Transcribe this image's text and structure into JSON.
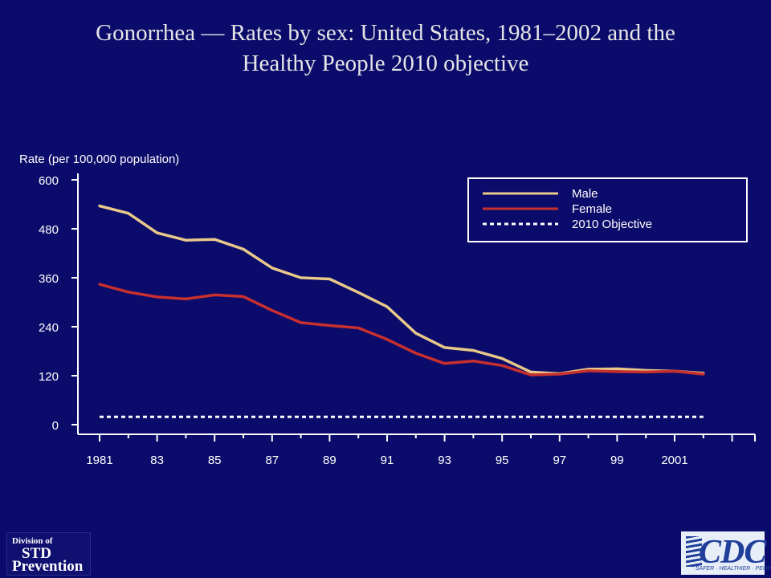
{
  "title": {
    "line1": "Gonorrhea — Rates by sex: United States, 1981–2002 and the",
    "line2": "Healthy People 2010 objective"
  },
  "colors": {
    "background": "#0b0b6b",
    "male": "#e8c98a",
    "female": "#c8302e",
    "objective": "#ffffff",
    "axis": "#ffffff"
  },
  "logos": {
    "std": {
      "line1": "Division of",
      "line2": "STD",
      "line3": "Prevention"
    },
    "cdc": {
      "mark": "CDC",
      "tagline": "SAFER · HEALTHIER · PEOPLE™"
    }
  },
  "chart_data": {
    "type": "line",
    "ylabel": "Rate (per 100,000 population)",
    "xlabel": "",
    "ylim": [
      0,
      600
    ],
    "yticks": [
      0,
      120,
      240,
      360,
      480,
      600
    ],
    "xlim": [
      1981,
      2003
    ],
    "xtick_labels": [
      {
        "year": 1981,
        "label": "1981"
      },
      {
        "year": 1983,
        "label": "83"
      },
      {
        "year": 1985,
        "label": "85"
      },
      {
        "year": 1987,
        "label": "87"
      },
      {
        "year": 1989,
        "label": "89"
      },
      {
        "year": 1991,
        "label": "91"
      },
      {
        "year": 1993,
        "label": "93"
      },
      {
        "year": 1995,
        "label": "95"
      },
      {
        "year": 1997,
        "label": "97"
      },
      {
        "year": 1999,
        "label": "99"
      },
      {
        "year": 2001,
        "label": "2001"
      }
    ],
    "legend_position": "top-right",
    "x": [
      1981,
      1982,
      1983,
      1984,
      1985,
      1986,
      1987,
      1988,
      1989,
      1990,
      1991,
      1992,
      1993,
      1994,
      1995,
      1996,
      1997,
      1998,
      1999,
      2000,
      2001,
      2002
    ],
    "series": [
      {
        "name": "Male",
        "style": "solid",
        "values": [
          536,
          518,
          470,
          452,
          454,
          430,
          384,
          360,
          357,
          324,
          289,
          224,
          189,
          182,
          162,
          129,
          125,
          136,
          137,
          133,
          131,
          126
        ]
      },
      {
        "name": "Female",
        "style": "solid",
        "values": [
          344,
          325,
          313,
          308,
          318,
          314,
          280,
          250,
          243,
          237,
          209,
          175,
          150,
          156,
          145,
          122,
          124,
          132,
          130,
          129,
          131,
          124
        ]
      },
      {
        "name": "2010 Objective",
        "style": "dotted",
        "values": [
          19,
          19,
          19,
          19,
          19,
          19,
          19,
          19,
          19,
          19,
          19,
          19,
          19,
          19,
          19,
          19,
          19,
          19,
          19,
          19,
          19,
          19
        ]
      }
    ]
  }
}
